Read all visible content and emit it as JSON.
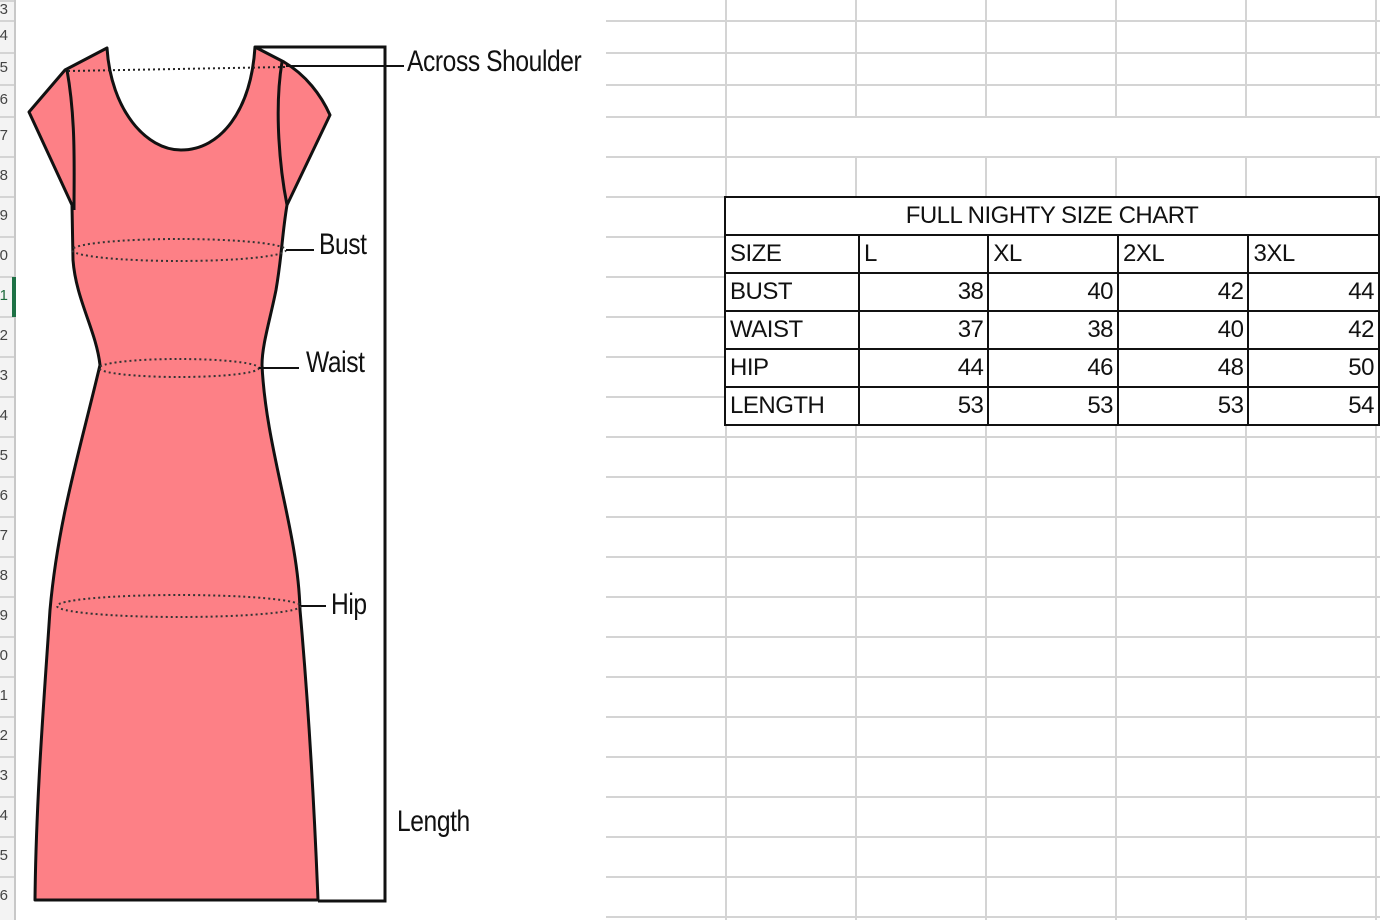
{
  "row_headers": [
    "3",
    "4",
    "5",
    "6",
    "7",
    "8",
    "9",
    "0",
    "1",
    "2",
    "3",
    "4",
    "5",
    "6",
    "7",
    "8",
    "9",
    "0",
    "1",
    "2",
    "3",
    "4",
    "5",
    "6"
  ],
  "selected_row_index": 8,
  "figure": {
    "labels": {
      "across_shoulder": "Across Shoulder",
      "bust": "Bust",
      "waist": "Waist",
      "hip": "Hip",
      "length": "Length"
    },
    "dress_color": "#fd8086"
  },
  "size_table": {
    "title": "FULL NIGHTY SIZE CHART",
    "header": [
      "SIZE",
      "L",
      "XL",
      "2XL",
      "3XL"
    ],
    "rows": [
      {
        "label": "BUST",
        "values": [
          "38",
          "40",
          "42",
          "44"
        ]
      },
      {
        "label": "WAIST",
        "values": [
          "37",
          "38",
          "40",
          "42"
        ]
      },
      {
        "label": "HIP",
        "values": [
          "44",
          "46",
          "48",
          "50"
        ]
      },
      {
        "label": "LENGTH",
        "values": [
          "53",
          "53",
          "53",
          "54"
        ]
      }
    ]
  }
}
